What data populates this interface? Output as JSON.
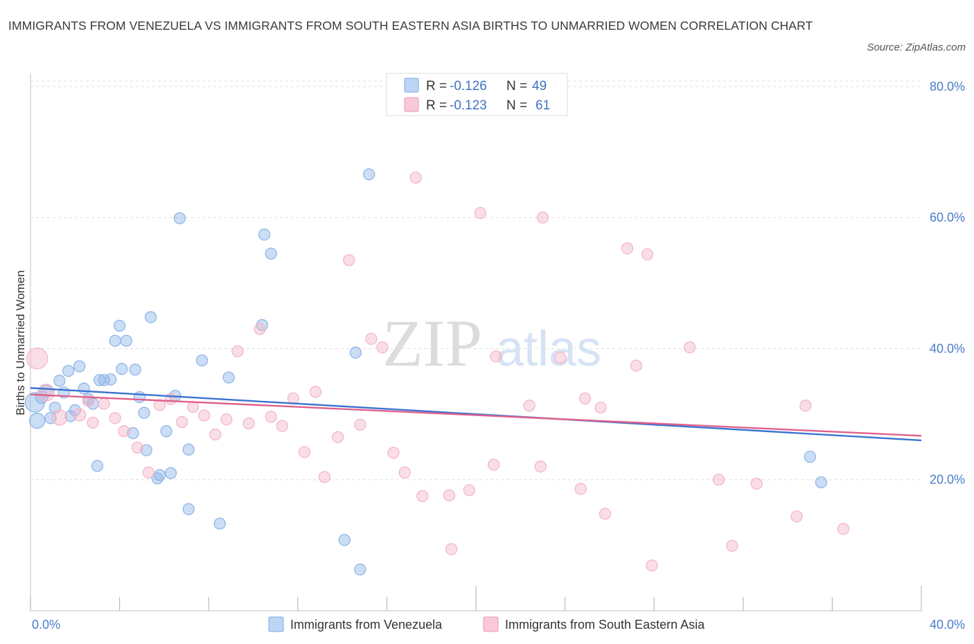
{
  "chart_data": {
    "type": "scatter",
    "title": "IMMIGRANTS FROM VENEZUELA VS IMMIGRANTS FROM SOUTH EASTERN ASIA BIRTHS TO UNMARRIED WOMEN CORRELATION CHART",
    "source": "Source: ZipAtlas.com",
    "xlabel": "",
    "ylabel": "Births to Unmarried Women",
    "xlim": [
      0,
      40
    ],
    "ylim": [
      0,
      82
    ],
    "x_tick_labels": {
      "left": "0.0%",
      "right": "40.0%"
    },
    "y_ticks": [
      {
        "value": 20,
        "label": "20.0%"
      },
      {
        "value": 40,
        "label": "40.0%"
      },
      {
        "value": 60,
        "label": "60.0%"
      },
      {
        "value": 80,
        "label": "80.0%"
      }
    ],
    "grid": true,
    "legend_position": "top-center",
    "watermark": {
      "zip": "ZIP",
      "atlas": "atlas"
    },
    "series": [
      {
        "name": "Immigrants from Venezuela",
        "color": "#8fb6e8",
        "line_color": "#3a74d0",
        "R_label": "R =",
        "N_label": "N =",
        "R": "-0.126",
        "N": "49",
        "trend": {
          "x0": 0,
          "y0": 34.0,
          "x1": 40,
          "y1": 26.0
        },
        "points": [
          [
            0.2,
            31.8,
            14
          ],
          [
            0.3,
            29.0,
            11
          ],
          [
            0.5,
            32.6,
            9
          ],
          [
            0.7,
            33.5,
            9
          ],
          [
            0.9,
            29.4,
            8
          ],
          [
            1.1,
            31.0,
            8
          ],
          [
            1.3,
            35.1,
            8
          ],
          [
            1.5,
            33.3,
            8
          ],
          [
            1.7,
            36.6,
            8
          ],
          [
            1.8,
            29.7,
            8
          ],
          [
            2.0,
            30.6,
            8
          ],
          [
            2.2,
            37.3,
            8
          ],
          [
            2.4,
            33.9,
            8
          ],
          [
            2.6,
            32.3,
            8
          ],
          [
            2.8,
            31.6,
            8
          ],
          [
            3.0,
            22.1,
            8
          ],
          [
            3.1,
            35.2,
            8
          ],
          [
            3.3,
            35.2,
            8
          ],
          [
            3.6,
            35.3,
            8
          ],
          [
            3.8,
            41.2,
            8
          ],
          [
            4.0,
            43.5,
            8
          ],
          [
            4.1,
            36.9,
            8
          ],
          [
            4.3,
            41.2,
            8
          ],
          [
            4.6,
            27.1,
            8
          ],
          [
            4.7,
            36.8,
            8
          ],
          [
            4.9,
            32.6,
            8
          ],
          [
            5.1,
            30.2,
            8
          ],
          [
            5.2,
            24.5,
            8
          ],
          [
            5.4,
            44.8,
            8
          ],
          [
            5.7,
            20.2,
            8
          ],
          [
            5.8,
            20.7,
            8
          ],
          [
            6.1,
            27.4,
            8
          ],
          [
            6.3,
            21.0,
            8
          ],
          [
            6.5,
            32.8,
            8
          ],
          [
            6.7,
            59.9,
            8
          ],
          [
            7.1,
            15.5,
            8
          ],
          [
            7.1,
            24.6,
            8
          ],
          [
            7.7,
            38.2,
            8
          ],
          [
            8.5,
            13.3,
            8
          ],
          [
            8.9,
            35.6,
            8
          ],
          [
            10.4,
            43.6,
            8
          ],
          [
            10.5,
            57.4,
            8
          ],
          [
            10.8,
            54.5,
            8
          ],
          [
            14.1,
            10.8,
            8
          ],
          [
            14.6,
            39.4,
            8
          ],
          [
            14.8,
            6.3,
            8
          ],
          [
            15.2,
            66.6,
            8
          ],
          [
            35.0,
            23.5,
            8
          ],
          [
            35.5,
            19.6,
            8
          ]
        ]
      },
      {
        "name": "Immigrants from South Eastern Asia",
        "color": "#f4b6c8",
        "line_color": "#e0608a",
        "R_label": "R =",
        "N_label": "N =",
        "R": "-0.123",
        "N": "61",
        "trend": {
          "x0": 0,
          "y0": 33.0,
          "x1": 40,
          "y1": 26.7
        },
        "points": [
          [
            0.3,
            38.5,
            15
          ],
          [
            0.7,
            33.3,
            12
          ],
          [
            1.3,
            29.5,
            11
          ],
          [
            2.2,
            29.9,
            9
          ],
          [
            2.6,
            32.0,
            8
          ],
          [
            2.8,
            28.7,
            8
          ],
          [
            3.3,
            31.6,
            8
          ],
          [
            3.8,
            29.4,
            8
          ],
          [
            4.2,
            27.4,
            8
          ],
          [
            4.8,
            24.9,
            8
          ],
          [
            5.3,
            21.1,
            8
          ],
          [
            5.8,
            31.4,
            8
          ],
          [
            6.3,
            32.3,
            8
          ],
          [
            6.8,
            28.8,
            8
          ],
          [
            7.3,
            31.1,
            8
          ],
          [
            7.8,
            29.8,
            8
          ],
          [
            8.3,
            26.9,
            8
          ],
          [
            8.8,
            29.2,
            8
          ],
          [
            9.3,
            39.6,
            8
          ],
          [
            9.8,
            28.6,
            8
          ],
          [
            10.3,
            43.0,
            8
          ],
          [
            10.8,
            29.6,
            8
          ],
          [
            11.3,
            28.2,
            8
          ],
          [
            11.8,
            32.4,
            8
          ],
          [
            12.3,
            24.2,
            8
          ],
          [
            12.8,
            33.4,
            8
          ],
          [
            13.2,
            20.4,
            8
          ],
          [
            13.8,
            26.5,
            8
          ],
          [
            14.3,
            53.5,
            8
          ],
          [
            14.8,
            28.4,
            8
          ],
          [
            15.3,
            41.5,
            8
          ],
          [
            15.8,
            40.2,
            8
          ],
          [
            16.3,
            24.1,
            8
          ],
          [
            16.8,
            21.1,
            8
          ],
          [
            17.3,
            66.1,
            8
          ],
          [
            17.6,
            17.5,
            8
          ],
          [
            18.8,
            17.6,
            8
          ],
          [
            18.9,
            9.4,
            8
          ],
          [
            19.7,
            18.4,
            8
          ],
          [
            20.2,
            60.7,
            8
          ],
          [
            20.8,
            22.3,
            8
          ],
          [
            20.9,
            38.8,
            8
          ],
          [
            22.4,
            31.3,
            8
          ],
          [
            22.9,
            22.0,
            8
          ],
          [
            23.0,
            60.0,
            8
          ],
          [
            23.8,
            38.6,
            8
          ],
          [
            24.7,
            18.6,
            8
          ],
          [
            24.9,
            32.4,
            8
          ],
          [
            25.6,
            31.0,
            8
          ],
          [
            25.8,
            14.8,
            8
          ],
          [
            26.8,
            55.3,
            8
          ],
          [
            27.2,
            37.4,
            8
          ],
          [
            27.7,
            54.4,
            8
          ],
          [
            27.9,
            6.9,
            8
          ],
          [
            29.6,
            40.2,
            8
          ],
          [
            30.9,
            20.0,
            8
          ],
          [
            31.5,
            9.9,
            8
          ],
          [
            32.6,
            19.4,
            8
          ],
          [
            34.4,
            14.4,
            8
          ],
          [
            34.8,
            31.3,
            8
          ],
          [
            36.5,
            12.5,
            8
          ]
        ]
      }
    ]
  }
}
